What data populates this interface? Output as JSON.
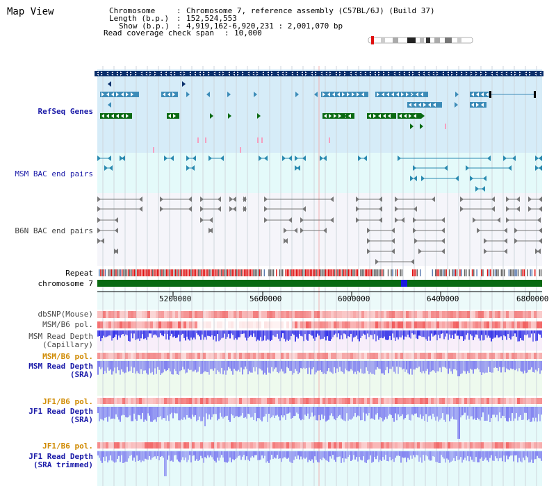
{
  "view_title": "Map View",
  "info": {
    "chromosome_label": "Chromosome",
    "chromosome_value": "Chromosome 7, reference assembly (C57BL/6J) (Build 37)",
    "length_label": "Length (b.p.)",
    "length_value": "152,524,553",
    "show_label": "Show (b.p.)",
    "show_value": "4,919,162-6,920,231 : 2,001,070 bp",
    "coverage_label": "Read coverage check span",
    "coverage_value": "10,000"
  },
  "tracks": {
    "refseq": "RefSeq Genes",
    "msm_bac": "MSM BAC end pairs",
    "b6n_bac": "B6N BAC end pairs",
    "repeat": "Repeat",
    "chromosome": "chromosome 7",
    "dbsnp": "dbSNP(Mouse)",
    "msm_b6_pol_1": "MSM/B6 pol.",
    "msm_depth_cap_1": "MSM Read Depth",
    "msm_depth_cap_2": "(Capillary)",
    "msm_b6_pol_2": "MSM/B6 pol.",
    "msm_depth_sra_1": "MSM Read Depth",
    "msm_depth_sra_2": "(SRA)",
    "jf1_b6_pol_1": "JF1/B6 pol.",
    "jf1_depth_sra_1": "JF1 Read Depth",
    "jf1_depth_sra_2": "(SRA)",
    "jf1_b6_pol_2": "JF1/B6 pol.",
    "jf1_depth_trim_1": "JF1 Read Depth",
    "jf1_depth_trim_2": "(SRA trimmed)"
  },
  "axis_ticks": [
    "5200000",
    "5600000",
    "6000000",
    "6400000",
    "6800000"
  ],
  "colors": {
    "refseq_bg": "#d6ecf8",
    "msm_bac_bg": "#e4fafa",
    "b6n_bac_bg": "#f5f5fa",
    "gene_dark": "#0a2f6b",
    "gene_mid": "#3d8cb8",
    "gene_green": "#0a6a12",
    "repeat_red": "#e01010",
    "chrom_green": "#0a6a12",
    "depth_blue": "#2a2ae6",
    "depth_light_blue": "#7b7bf0",
    "pol_red": "#f07070"
  }
}
